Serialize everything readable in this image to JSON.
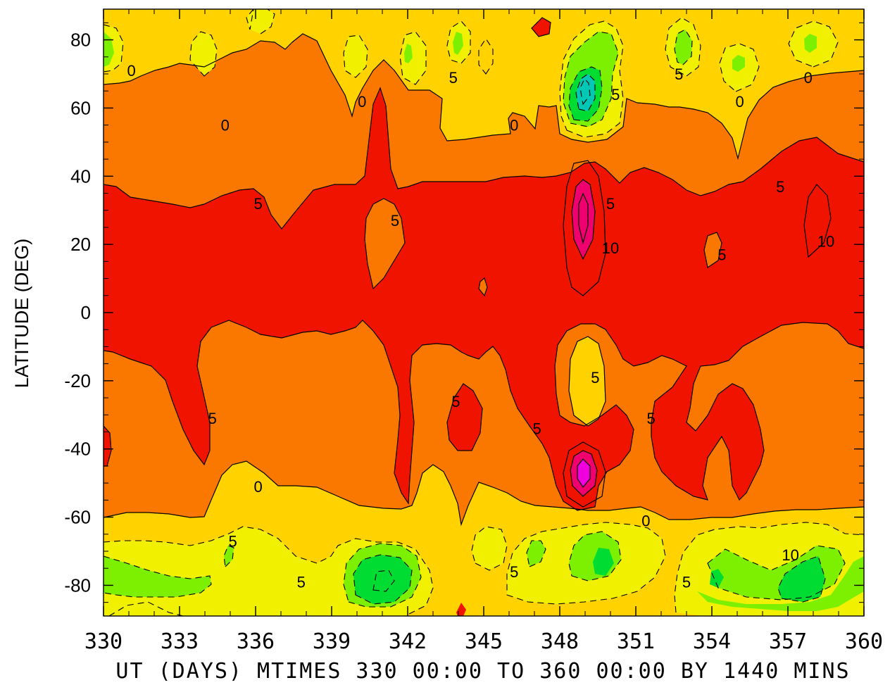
{
  "chart_data": {
    "type": "heatmap",
    "xlabel": "UT (DAYS) MTIMES 330 00:00 TO 360 00:00 BY 1440 MINS",
    "ylabel": "LATITUDE (DEG)",
    "x_ticks": [
      330,
      333,
      336,
      339,
      342,
      345,
      348,
      351,
      354,
      357,
      360
    ],
    "y_ticks": [
      80,
      60,
      40,
      20,
      0,
      -20,
      -40,
      -60,
      -80
    ],
    "xlim": [
      330,
      360
    ],
    "ylim": [
      -89,
      89
    ],
    "grid": false,
    "legend": "none",
    "contour_levels": [
      -20,
      -15,
      -10,
      -5,
      0,
      5,
      10,
      15,
      20
    ],
    "negative_contours_dashed": true,
    "band_colors": {
      "lt_-15": "#00c8b4",
      "-15_-10": "#00dc32",
      "-10_-5": "#7cf000",
      "-5_0": "#f0f000",
      "0_5": "#ffd200",
      "5_10": "#fa7800",
      "10_15": "#f01400",
      "15_20": "#f0006e",
      "gt_20": "#f000dc"
    },
    "contour_labels": [
      {
        "text": "0",
        "x": 331.1,
        "y": 71
      },
      {
        "text": "0",
        "x": 334.8,
        "y": 55
      },
      {
        "text": "0",
        "x": 340.2,
        "y": 62
      },
      {
        "text": "5",
        "x": 343.8,
        "y": 69
      },
      {
        "text": "0",
        "x": 346.2,
        "y": 55
      },
      {
        "text": "5",
        "x": 350.2,
        "y": 64
      },
      {
        "text": "5",
        "x": 352.7,
        "y": 70
      },
      {
        "text": "0",
        "x": 357.8,
        "y": 69
      },
      {
        "text": "0",
        "x": 355.1,
        "y": 62
      },
      {
        "text": "5",
        "x": 336.1,
        "y": 32
      },
      {
        "text": "5",
        "x": 341.5,
        "y": 27
      },
      {
        "text": "5",
        "x": 350.0,
        "y": 32
      },
      {
        "text": "10",
        "x": 350.0,
        "y": 19
      },
      {
        "text": "5",
        "x": 356.7,
        "y": 37
      },
      {
        "text": "10",
        "x": 358.5,
        "y": 21
      },
      {
        "text": "5",
        "x": 354.4,
        "y": 17
      },
      {
        "text": "5",
        "x": 349.4,
        "y": -19
      },
      {
        "text": "5",
        "x": 343.9,
        "y": -26
      },
      {
        "text": "5",
        "x": 334.3,
        "y": -31
      },
      {
        "text": "5",
        "x": 347.1,
        "y": -34
      },
      {
        "text": "5",
        "x": 351.6,
        "y": -31
      },
      {
        "text": "0",
        "x": 336.1,
        "y": -51
      },
      {
        "text": "0",
        "x": 351.4,
        "y": -61
      },
      {
        "text": "5",
        "x": 335.1,
        "y": -67
      },
      {
        "text": "5",
        "x": 337.8,
        "y": -79
      },
      {
        "text": "5",
        "x": 346.2,
        "y": -76
      },
      {
        "text": "5",
        "x": 353.0,
        "y": -79
      },
      {
        "text": "10",
        "x": 357.1,
        "y": -71
      }
    ],
    "features": [
      {
        "kind": "max",
        "value": "> 20",
        "x": 349.0,
        "y": -48
      },
      {
        "kind": "max",
        "value": "15-20",
        "x": 349.0,
        "y": 29
      },
      {
        "kind": "min",
        "value": "< -15",
        "x": 349.0,
        "y": 62
      },
      {
        "kind": "min",
        "value": "-10 to -15",
        "x": 340.8,
        "y": -79
      },
      {
        "kind": "min",
        "value": "-10 to -15",
        "x": 358.7,
        "y": -79
      }
    ]
  }
}
